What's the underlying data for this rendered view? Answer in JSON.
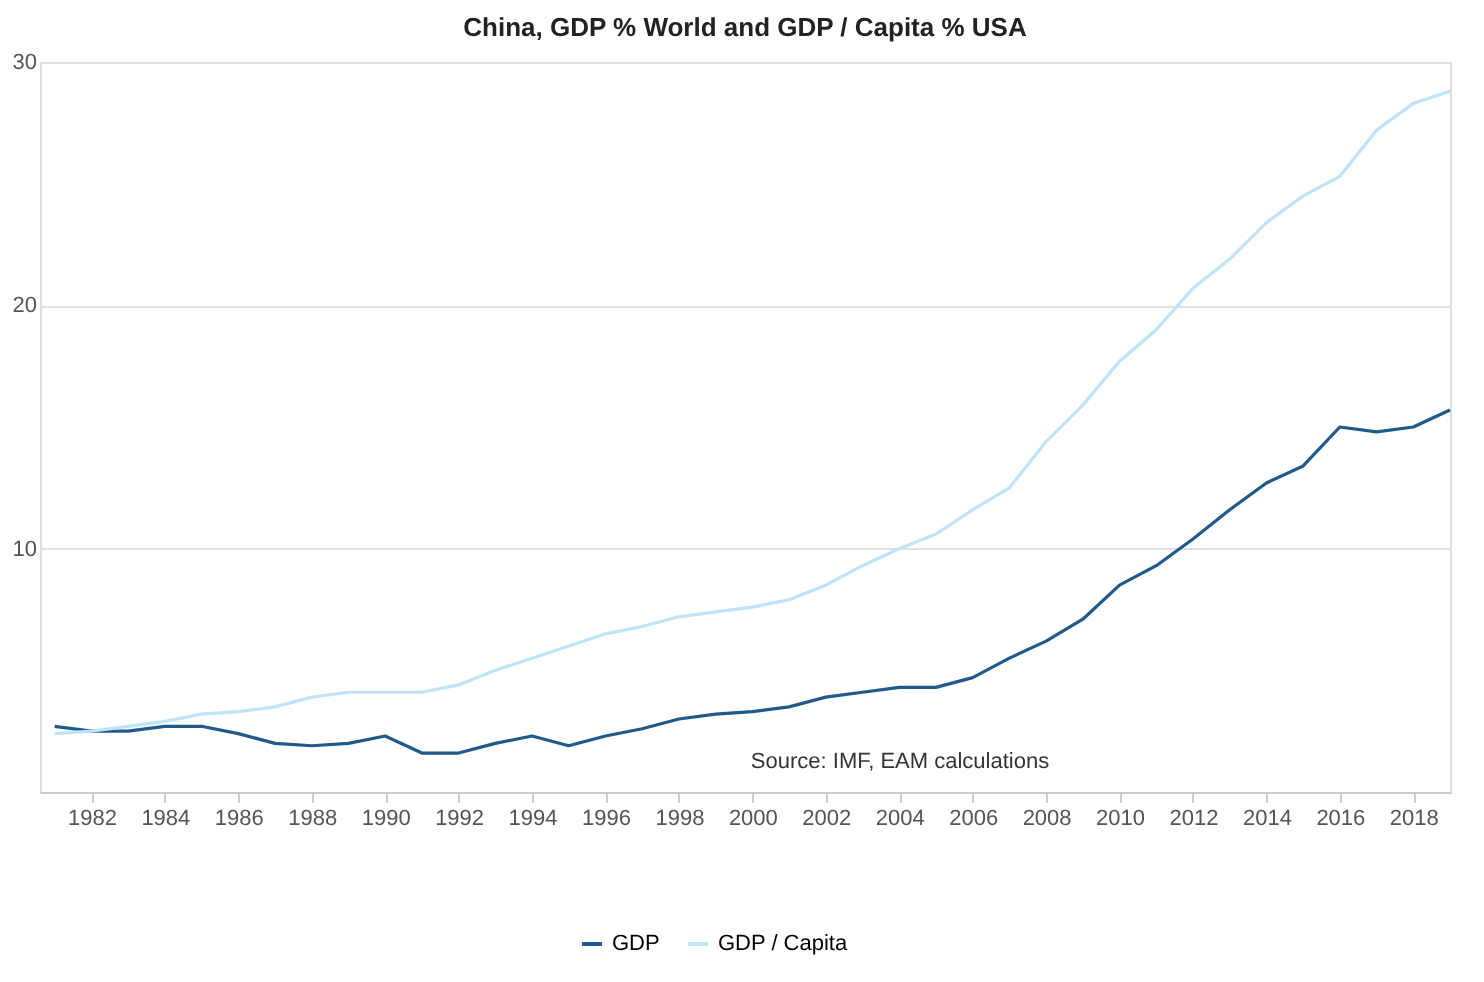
{
  "chart_data": {
    "type": "line",
    "title": "China, GDP % World and GDP / Capita % USA",
    "x": [
      1981,
      1982,
      1983,
      1984,
      1985,
      1986,
      1987,
      1988,
      1989,
      1990,
      1991,
      1992,
      1993,
      1994,
      1995,
      1996,
      1997,
      1998,
      1999,
      2000,
      2001,
      2002,
      2003,
      2004,
      2005,
      2006,
      2007,
      2008,
      2009,
      2010,
      2011,
      2012,
      2013,
      2014,
      2015,
      2016,
      2017,
      2018,
      2019
    ],
    "series": [
      {
        "name": "GDP",
        "color": "#1f5a8a",
        "values": [
          2.7,
          2.5,
          2.5,
          2.7,
          2.7,
          2.4,
          2.0,
          1.9,
          2.0,
          2.3,
          1.6,
          1.6,
          2.0,
          2.3,
          1.9,
          2.3,
          2.6,
          3.0,
          3.2,
          3.3,
          3.5,
          3.9,
          4.1,
          4.3,
          4.3,
          4.7,
          5.5,
          6.2,
          7.1,
          8.5,
          9.3,
          10.4,
          11.6,
          12.7,
          13.4,
          15.0,
          14.8,
          15.0,
          15.7
        ]
      },
      {
        "name": "GDP / Capita",
        "color": "#bfe3f7",
        "values": [
          2.4,
          2.5,
          2.7,
          2.9,
          3.2,
          3.3,
          3.5,
          3.9,
          4.1,
          4.1,
          4.1,
          4.4,
          5.0,
          5.5,
          6.0,
          6.5,
          6.8,
          7.2,
          7.4,
          7.6,
          7.9,
          8.5,
          9.3,
          10.0,
          10.6,
          11.6,
          12.5,
          14.4,
          15.9,
          17.7,
          19.0,
          20.7,
          21.9,
          23.4,
          24.5,
          25.3,
          27.2,
          28.3,
          28.8
        ]
      }
    ],
    "xlim": [
      1980.6,
      2019
    ],
    "xticks": [
      1982,
      1984,
      1986,
      1988,
      1990,
      1992,
      1994,
      1996,
      1998,
      2000,
      2002,
      2004,
      2006,
      2008,
      2010,
      2012,
      2014,
      2016,
      2018
    ],
    "ylim": [
      0,
      30
    ],
    "yticks": [
      10,
      20,
      30
    ],
    "grid": "y",
    "legend": "bottom",
    "marker": "none",
    "line_style": "solid",
    "annotations": [
      "Source: IMF, EAM calculations"
    ]
  }
}
